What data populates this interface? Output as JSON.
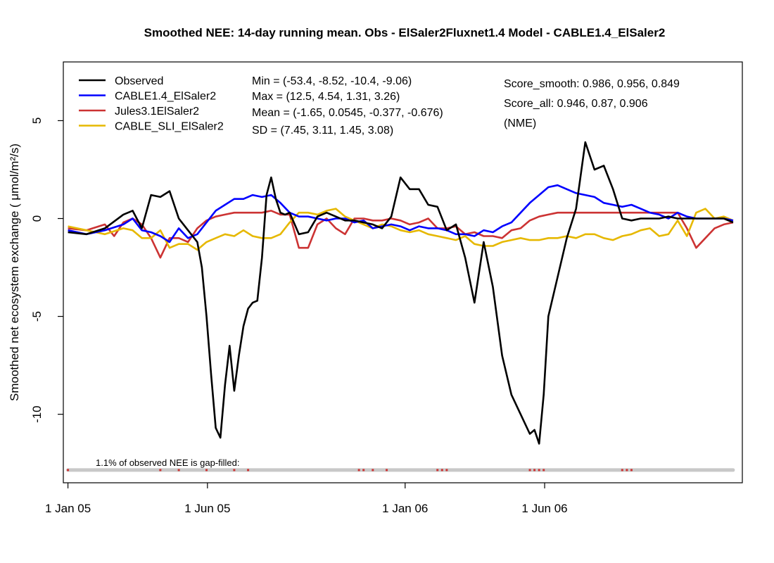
{
  "chart_data": {
    "type": "line",
    "title": "Smoothed NEE: 14-day running mean.   Obs - ElSaler2Fluxnet1.4   Model - CABLE1.4_ElSaler2",
    "ylabel": "Smoothed net ecosystem exchange  ( μmol/m²/s)",
    "xlabel": "",
    "ylim": [
      -13.5,
      8
    ],
    "xlim": [
      -5,
      730
    ],
    "y_ticks": [
      {
        "value": 5,
        "label": "5"
      },
      {
        "value": 0,
        "label": "0"
      },
      {
        "value": -5,
        "label": "-5"
      },
      {
        "value": -10,
        "label": "-10"
      }
    ],
    "x_ticks": [
      {
        "value": 0,
        "label": "1 Jan 05"
      },
      {
        "value": 151,
        "label": "1 Jun 05"
      },
      {
        "value": 365,
        "label": "1 Jan 06"
      },
      {
        "value": 516,
        "label": "1 Jun 06"
      }
    ],
    "legend_position": "top-left",
    "series": [
      {
        "name": "Observed",
        "color": "#000000",
        "x": [
          0,
          20,
          40,
          60,
          70,
          80,
          90,
          100,
          110,
          120,
          130,
          140,
          145,
          150,
          155,
          160,
          165,
          170,
          175,
          180,
          185,
          190,
          195,
          200,
          205,
          210,
          215,
          220,
          225,
          230,
          235,
          240,
          250,
          260,
          270,
          280,
          290,
          300,
          310,
          320,
          330,
          340,
          350,
          360,
          370,
          380,
          390,
          400,
          410,
          420,
          430,
          440,
          450,
          460,
          470,
          480,
          490,
          500,
          505,
          510,
          515,
          520,
          530,
          540,
          550,
          560,
          570,
          580,
          590,
          600,
          610,
          620,
          630,
          640,
          650,
          660,
          670,
          680,
          690,
          700,
          710,
          720
        ],
        "values": [
          -0.7,
          -0.8,
          -0.5,
          0.2,
          0.4,
          -0.5,
          1.2,
          1.1,
          1.4,
          0,
          -0.6,
          -1.2,
          -2.5,
          -5.0,
          -8.0,
          -10.7,
          -11.2,
          -8.5,
          -6.5,
          -8.8,
          -7.0,
          -5.5,
          -4.6,
          -4.3,
          -4.2,
          -2.0,
          1.2,
          2.1,
          1.0,
          0.3,
          0.2,
          0.3,
          -0.8,
          -0.7,
          0.1,
          0.3,
          0.1,
          -0.1,
          -0.1,
          -0.2,
          -0.3,
          -0.5,
          0.1,
          2.1,
          1.5,
          1.5,
          0.7,
          0.6,
          -0.6,
          -0.3,
          -2.0,
          -4.3,
          -1.2,
          -3.5,
          -7.0,
          -9.0,
          -10.0,
          -11.0,
          -10.8,
          -11.5,
          -9.0,
          -5.0,
          -3.0,
          -1.0,
          0.5,
          3.9,
          2.5,
          2.7,
          1.5,
          0.0,
          -0.1,
          0.0,
          0.0,
          0.0,
          0.1,
          0.0,
          0.0,
          0.0,
          0.0,
          0.0,
          0.0,
          -0.2
        ]
      },
      {
        "name": "CABLE1.4_ElSaler2",
        "color": "#0000ff",
        "x": [
          0,
          20,
          40,
          60,
          70,
          80,
          90,
          100,
          110,
          120,
          130,
          140,
          150,
          160,
          170,
          180,
          190,
          200,
          210,
          220,
          230,
          240,
          250,
          260,
          270,
          280,
          290,
          300,
          310,
          320,
          330,
          340,
          350,
          360,
          370,
          380,
          390,
          400,
          410,
          420,
          430,
          440,
          450,
          460,
          470,
          480,
          490,
          500,
          510,
          520,
          530,
          540,
          550,
          560,
          570,
          580,
          590,
          600,
          610,
          620,
          630,
          640,
          650,
          660,
          670,
          680,
          690,
          700,
          710,
          720
        ],
        "values": [
          -0.6,
          -0.8,
          -0.6,
          -0.3,
          0.0,
          -0.6,
          -0.7,
          -0.9,
          -1.2,
          -0.5,
          -1.0,
          -0.8,
          -0.2,
          0.4,
          0.7,
          1.0,
          1.0,
          1.2,
          1.1,
          1.2,
          0.8,
          0.3,
          0.1,
          0.1,
          0.0,
          -0.1,
          0.0,
          0.0,
          -0.2,
          -0.1,
          -0.5,
          -0.4,
          -0.3,
          -0.4,
          -0.6,
          -0.4,
          -0.5,
          -0.5,
          -0.6,
          -0.8,
          -0.8,
          -0.9,
          -0.6,
          -0.7,
          -0.4,
          -0.2,
          0.3,
          0.8,
          1.2,
          1.6,
          1.7,
          1.5,
          1.3,
          1.2,
          1.1,
          0.8,
          0.7,
          0.6,
          0.7,
          0.5,
          0.3,
          0.2,
          0.0,
          0.3,
          0.1,
          0.0,
          0.0,
          0.0,
          0.0,
          -0.1
        ]
      },
      {
        "name": "Jules3.1ElSaler2",
        "color": "#cc3333",
        "x": [
          0,
          20,
          40,
          50,
          60,
          70,
          80,
          90,
          100,
          110,
          120,
          130,
          140,
          150,
          160,
          170,
          180,
          190,
          200,
          210,
          220,
          230,
          240,
          250,
          260,
          270,
          280,
          290,
          300,
          310,
          320,
          330,
          340,
          350,
          360,
          370,
          380,
          390,
          400,
          410,
          420,
          430,
          440,
          450,
          460,
          470,
          480,
          490,
          500,
          510,
          520,
          530,
          540,
          550,
          560,
          570,
          580,
          590,
          600,
          610,
          620,
          630,
          640,
          650,
          660,
          670,
          680,
          690,
          700,
          710,
          720
        ],
        "values": [
          -0.5,
          -0.6,
          -0.3,
          -0.9,
          -0.2,
          0.0,
          -0.3,
          -1.0,
          -2.0,
          -1.0,
          -1.0,
          -1.2,
          -0.5,
          -0.1,
          0.1,
          0.2,
          0.3,
          0.3,
          0.3,
          0.3,
          0.4,
          0.2,
          0.2,
          -1.5,
          -1.5,
          -0.3,
          0.0,
          -0.5,
          -0.8,
          0.0,
          0.0,
          -0.1,
          -0.1,
          0.0,
          -0.1,
          -0.3,
          -0.2,
          0.0,
          -0.5,
          -0.5,
          -0.4,
          -0.8,
          -0.7,
          -0.9,
          -0.9,
          -1.0,
          -0.6,
          -0.5,
          -0.1,
          0.1,
          0.2,
          0.3,
          0.3,
          0.3,
          0.3,
          0.3,
          0.3,
          0.3,
          0.3,
          0.3,
          0.3,
          0.3,
          0.3,
          0.3,
          0.3,
          -0.5,
          -1.5,
          -1.0,
          -0.5,
          -0.3,
          -0.2
        ]
      },
      {
        "name": "CABLE_SLI_ElSaler2",
        "color": "#e6b800",
        "x": [
          0,
          20,
          40,
          60,
          70,
          80,
          90,
          100,
          110,
          120,
          130,
          140,
          150,
          160,
          170,
          180,
          190,
          200,
          210,
          220,
          230,
          240,
          250,
          260,
          270,
          280,
          290,
          300,
          310,
          320,
          330,
          340,
          350,
          360,
          370,
          380,
          390,
          400,
          410,
          420,
          430,
          440,
          450,
          460,
          470,
          480,
          490,
          500,
          510,
          520,
          530,
          540,
          550,
          560,
          570,
          580,
          590,
          600,
          610,
          620,
          630,
          640,
          650,
          660,
          670,
          680,
          690,
          700,
          710,
          720
        ],
        "values": [
          -0.4,
          -0.6,
          -0.8,
          -0.5,
          -0.6,
          -1.0,
          -1.0,
          -0.6,
          -1.5,
          -1.3,
          -1.3,
          -1.6,
          -1.2,
          -1.0,
          -0.8,
          -0.9,
          -0.6,
          -0.9,
          -1.0,
          -1.0,
          -0.8,
          -0.2,
          0.3,
          0.3,
          0.2,
          0.4,
          0.5,
          0.1,
          -0.1,
          -0.3,
          -0.5,
          -0.3,
          -0.4,
          -0.6,
          -0.7,
          -0.6,
          -0.8,
          -0.9,
          -1.0,
          -1.1,
          -0.9,
          -1.3,
          -1.4,
          -1.4,
          -1.2,
          -1.1,
          -1.0,
          -1.1,
          -1.1,
          -1.0,
          -1.0,
          -0.9,
          -1.0,
          -0.8,
          -0.8,
          -1.0,
          -1.1,
          -0.9,
          -0.8,
          -0.6,
          -0.5,
          -0.9,
          -0.8,
          -0.1,
          -0.9,
          0.3,
          0.5,
          0.0,
          0.1,
          -0.1
        ]
      }
    ],
    "stats": {
      "min": "Min = (-53.4, -8.52, -10.4, -9.06)",
      "max": "Max = (12.5, 4.54, 1.31, 3.26)",
      "mean": "Mean = (-1.65, 0.0545, -0.377, -0.676)",
      "sd": "SD = (7.45, 3.11, 1.45, 3.08)"
    },
    "scores": {
      "smooth": "Score_smooth: 0.986, 0.956, 0.849",
      "all": "Score_all: 0.946, 0.87, 0.906",
      "metric": " (NME)"
    },
    "gapfill": {
      "label": "1.1% of observed NEE is gap-filled:",
      "y": -12.85,
      "bar_color": "#c8c8c8",
      "mark_color": "#cc3333",
      "x_start": 0,
      "x_end": 720,
      "marks": [
        0,
        100,
        120,
        150,
        180,
        195,
        315,
        320,
        330,
        345,
        400,
        405,
        410,
        500,
        505,
        510,
        515,
        600,
        605,
        610
      ]
    }
  }
}
